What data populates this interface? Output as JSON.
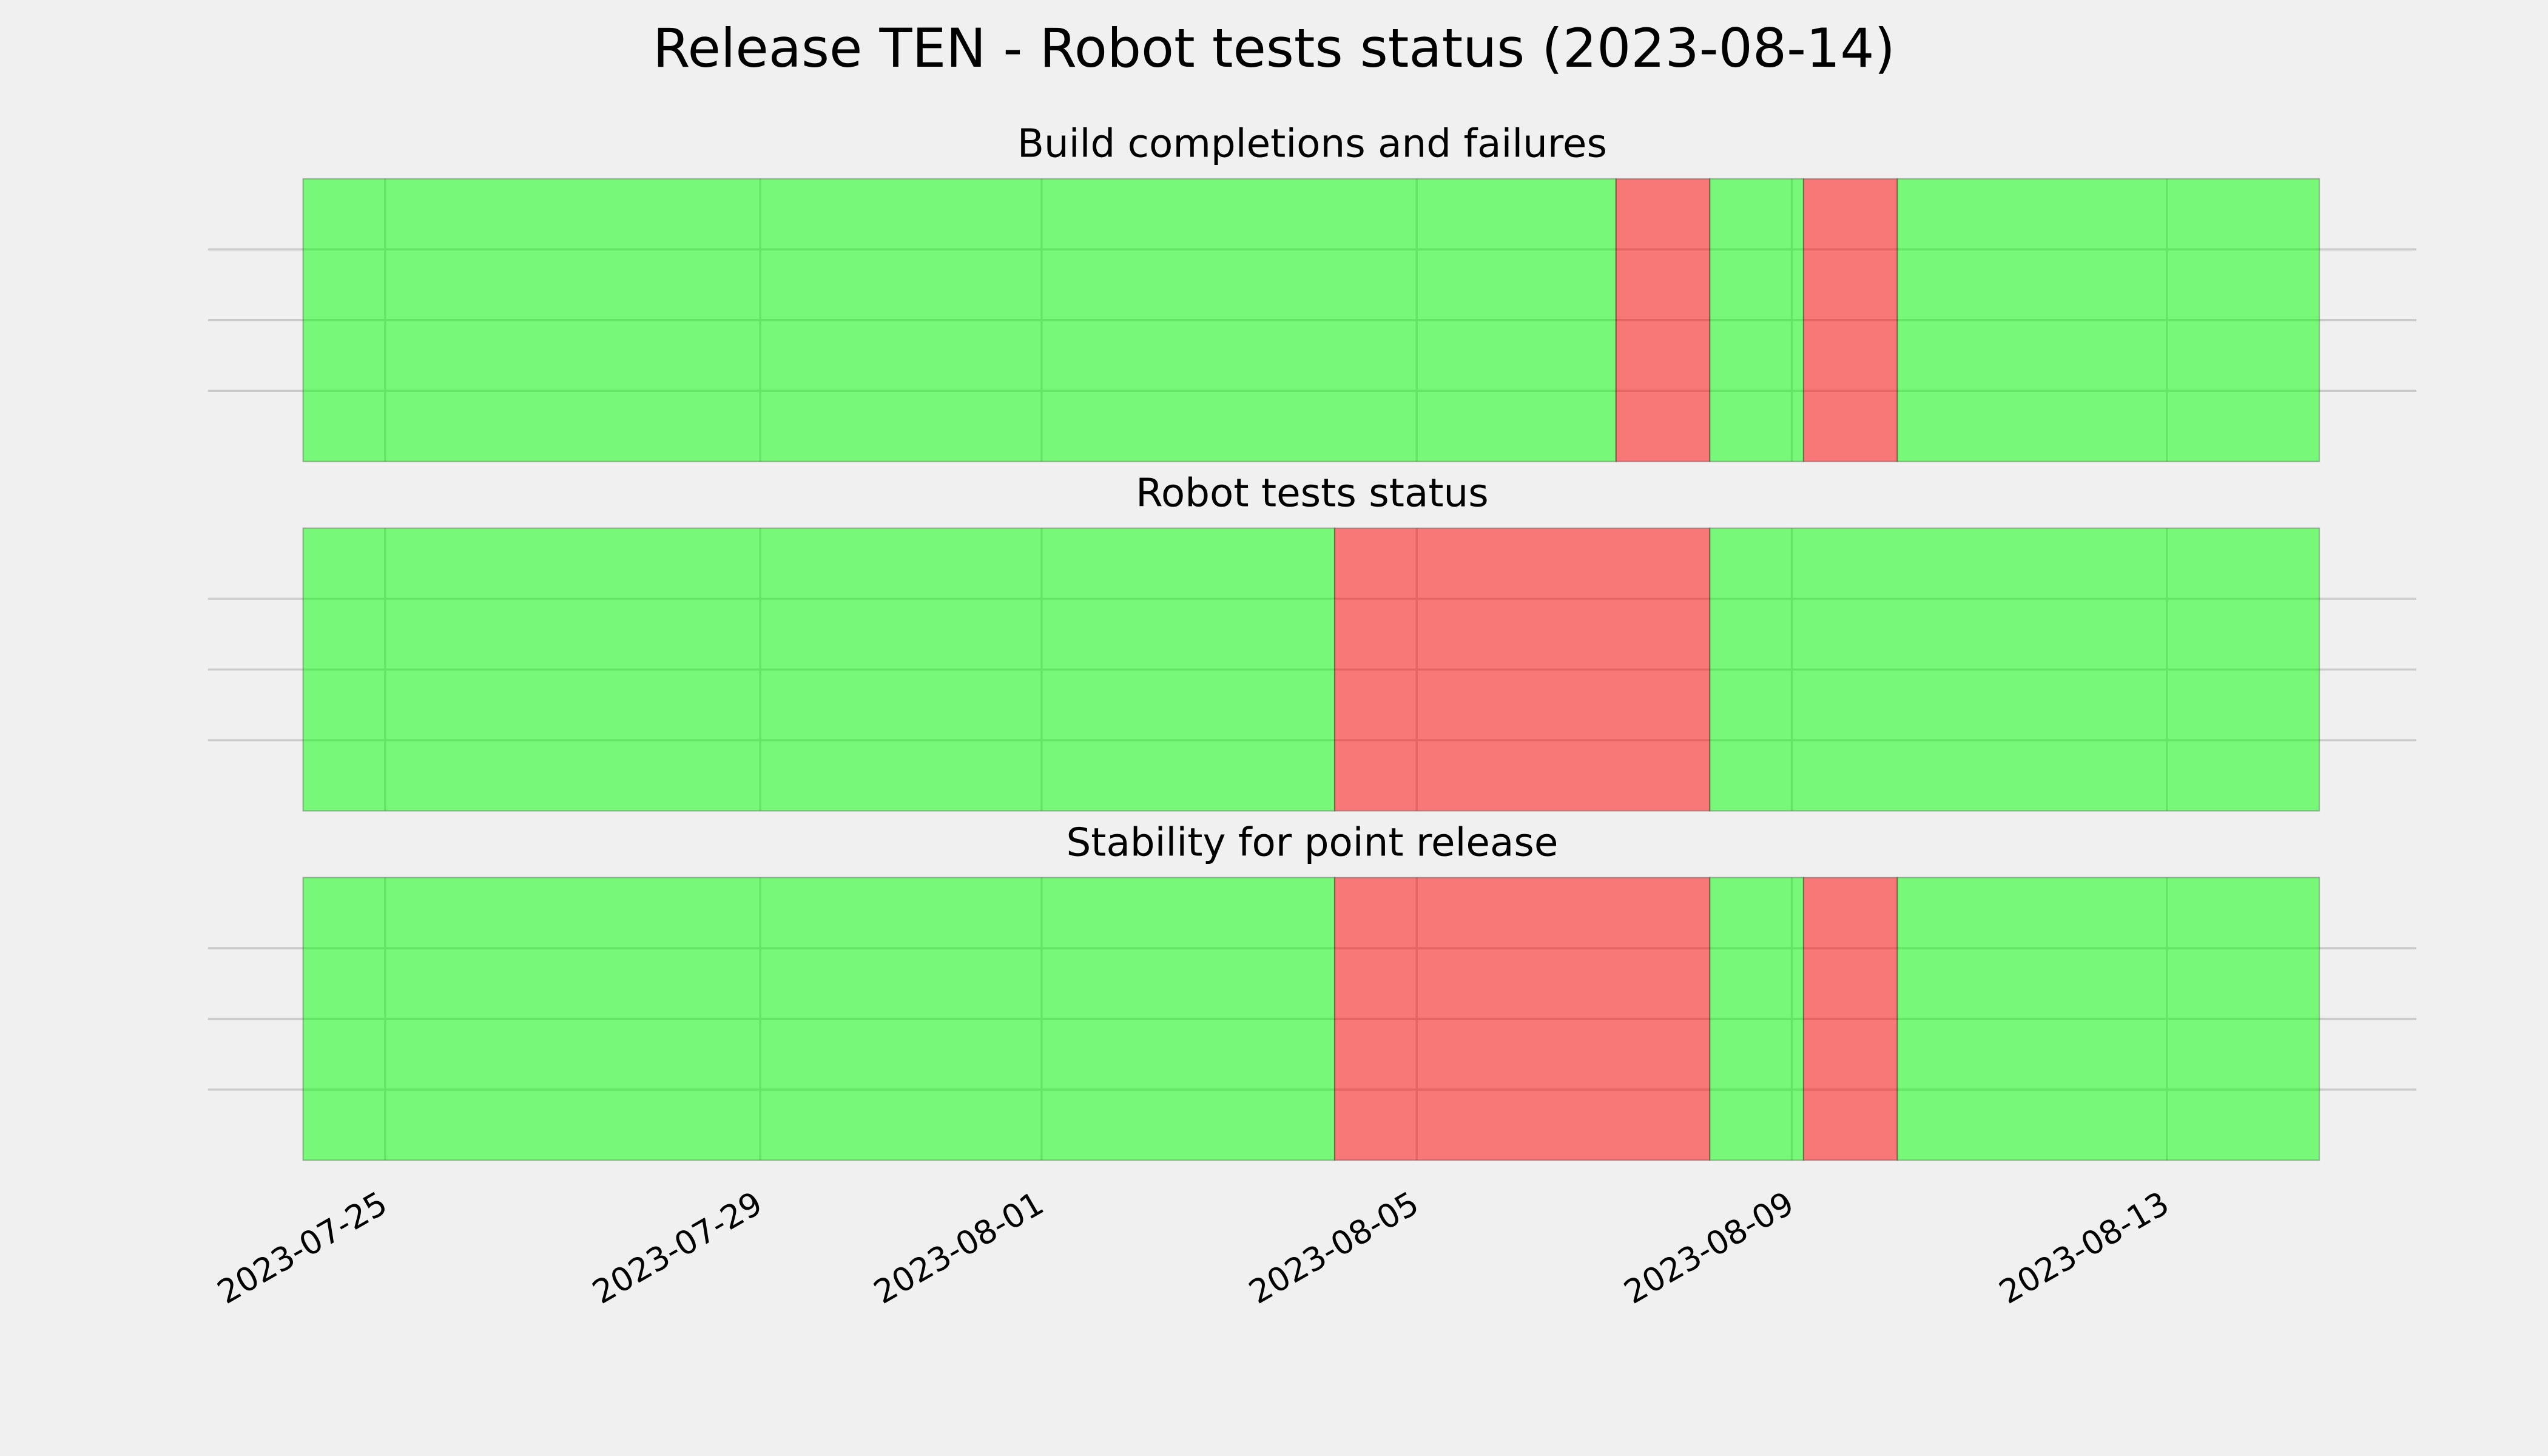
{
  "title": "Release TEN - Robot tests status (2023-08-14)",
  "chart_data": [
    {
      "type": "timeline",
      "title": "Build completions and failures",
      "segments": [
        {
          "start": "2023-07-24T03:00",
          "end": "2023-08-07T03:00",
          "color": "#00ff00"
        },
        {
          "start": "2023-08-07T03:00",
          "end": "2023-08-08T03:00",
          "color": "#ff0000"
        },
        {
          "start": "2023-08-08T03:00",
          "end": "2023-08-09T03:00",
          "color": "#00ff00"
        },
        {
          "start": "2023-08-09T03:00",
          "end": "2023-08-10T03:00",
          "color": "#ff0000"
        },
        {
          "start": "2023-08-10T03:00",
          "end": "2023-08-14T15:00",
          "color": "#00ff00"
        }
      ],
      "xlim": [
        "2023-07-23T02:40",
        "2023-08-15T15:50"
      ],
      "xticks": [
        "2023-07-25",
        "2023-07-29",
        "2023-08-01",
        "2023-08-05",
        "2023-08-09",
        "2023-08-13"
      ],
      "ylim": [
        0,
        1
      ],
      "yticks": [
        0.25,
        0.5,
        0.75
      ],
      "grid": true
    },
    {
      "type": "timeline",
      "title": "Robot tests status",
      "segments": [
        {
          "start": "2023-07-24T03:00",
          "end": "2023-08-04T03:00",
          "color": "#00ff00"
        },
        {
          "start": "2023-08-04T03:00",
          "end": "2023-08-08T03:00",
          "color": "#ff0000"
        },
        {
          "start": "2023-08-08T03:00",
          "end": "2023-08-14T15:00",
          "color": "#00ff00"
        }
      ],
      "xlim": [
        "2023-07-23T02:40",
        "2023-08-15T15:50"
      ],
      "xticks": [
        "2023-07-25",
        "2023-07-29",
        "2023-08-01",
        "2023-08-05",
        "2023-08-09",
        "2023-08-13"
      ],
      "ylim": [
        0,
        1
      ],
      "yticks": [
        0.25,
        0.5,
        0.75
      ],
      "grid": true
    },
    {
      "type": "timeline",
      "title": "Stability for point release",
      "segments": [
        {
          "start": "2023-07-24T03:00",
          "end": "2023-08-04T03:00",
          "color": "#00ff00"
        },
        {
          "start": "2023-08-04T03:00",
          "end": "2023-08-08T03:00",
          "color": "#ff0000"
        },
        {
          "start": "2023-08-08T03:00",
          "end": "2023-08-09T03:00",
          "color": "#00ff00"
        },
        {
          "start": "2023-08-09T03:00",
          "end": "2023-08-10T03:00",
          "color": "#ff0000"
        },
        {
          "start": "2023-08-10T03:00",
          "end": "2023-08-14T15:00",
          "color": "#00ff00"
        }
      ],
      "xlim": [
        "2023-07-23T02:40",
        "2023-08-15T15:50"
      ],
      "xticks": [
        "2023-07-25",
        "2023-07-29",
        "2023-08-01",
        "2023-08-05",
        "2023-08-09",
        "2023-08-13"
      ],
      "ylim": [
        0,
        1
      ],
      "yticks": [
        0.25,
        0.5,
        0.75
      ],
      "grid": true
    }
  ]
}
